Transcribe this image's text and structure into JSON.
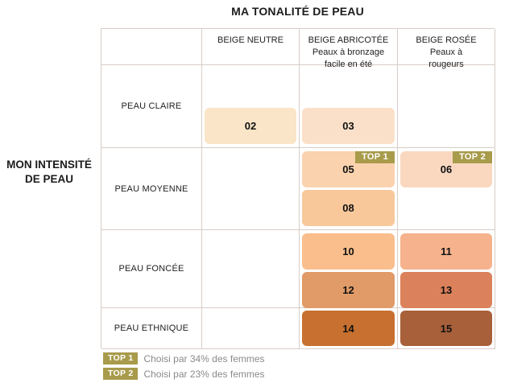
{
  "title": "MA TONALITÉ DE PEAU",
  "row_axis": {
    "line1": "MON INTENSITÉ",
    "line2": "DE PEAU"
  },
  "columns": [
    {
      "name": "BEIGE NEUTRE",
      "sub_lines": []
    },
    {
      "name": "BEIGE ABRICOTÉE",
      "sub_lines": [
        "Peaux à bronzage",
        "facile en été"
      ]
    },
    {
      "name": "BEIGE ROSÉE",
      "sub_lines": [
        "Peaux à",
        "rougeurs"
      ]
    }
  ],
  "rows": [
    "PEAU CLAIRE",
    "PEAU MOYENNE",
    "PEAU FONCÉE",
    "PEAU ETHNIQUE"
  ],
  "shades": {
    "s02": {
      "label": "02",
      "color": "#FAE5C8"
    },
    "s03": {
      "label": "03",
      "color": "#FBE0C9"
    },
    "s05": {
      "label": "05",
      "color": "#FAD2AE",
      "badge": "TOP 1"
    },
    "s06": {
      "label": "06",
      "color": "#FAD8C0",
      "badge": "TOP 2"
    },
    "s08": {
      "label": "08",
      "color": "#F8C89B"
    },
    "s10": {
      "label": "10",
      "color": "#F9BE8C"
    },
    "s11": {
      "label": "11",
      "color": "#F5B28D"
    },
    "s12": {
      "label": "12",
      "color": "#E09B68"
    },
    "s13": {
      "label": "13",
      "color": "#DB815B"
    },
    "s14": {
      "label": "14",
      "color": "#C7702F"
    },
    "s15": {
      "label": "15",
      "color": "#A7603A"
    }
  },
  "legend": [
    {
      "badge": "TOP 1",
      "text": "Choisi par 34% des femmes"
    },
    {
      "badge": "TOP 2",
      "text": "Choisi par 23% des femmes"
    }
  ],
  "colors": {
    "badge": "#A89B4B",
    "border": "#D8CDC7",
    "legend_text": "#8A8A8A"
  },
  "chart_data": {
    "type": "table",
    "title": "MA TONALITÉ DE PEAU",
    "row_axis_label": "MON INTENSITÉ DE PEAU",
    "columns": [
      "BEIGE NEUTRE",
      "BEIGE ABRICOTÉE (Peaux à bronzage facile en été)",
      "BEIGE ROSÉE (Peaux à rougeurs)"
    ],
    "rows": [
      "PEAU CLAIRE",
      "PEAU MOYENNE",
      "PEAU FONCÉE",
      "PEAU ETHNIQUE"
    ],
    "cells": [
      {
        "row": "PEAU CLAIRE",
        "BEIGE NEUTRE": [
          "02"
        ],
        "BEIGE ABRICOTÉE": [
          "03"
        ],
        "BEIGE ROSÉE": []
      },
      {
        "row": "PEAU MOYENNE",
        "BEIGE NEUTRE": [],
        "BEIGE ABRICOTÉE": [
          "05",
          "08"
        ],
        "BEIGE ROSÉE": [
          "06"
        ]
      },
      {
        "row": "PEAU FONCÉE",
        "BEIGE NEUTRE": [],
        "BEIGE ABRICOTÉE": [
          "10",
          "12"
        ],
        "BEIGE ROSÉE": [
          "11",
          "13"
        ]
      },
      {
        "row": "PEAU ETHNIQUE",
        "BEIGE NEUTRE": [],
        "BEIGE ABRICOTÉE": [
          "14"
        ],
        "BEIGE ROSÉE": [
          "15"
        ]
      }
    ],
    "annotations": [
      {
        "badge": "TOP 1",
        "on_shade": "05",
        "note": "Choisi par 34% des femmes"
      },
      {
        "badge": "TOP 2",
        "on_shade": "06",
        "note": "Choisi par 23% des femmes"
      }
    ],
    "legend_position": "bottom-left"
  }
}
